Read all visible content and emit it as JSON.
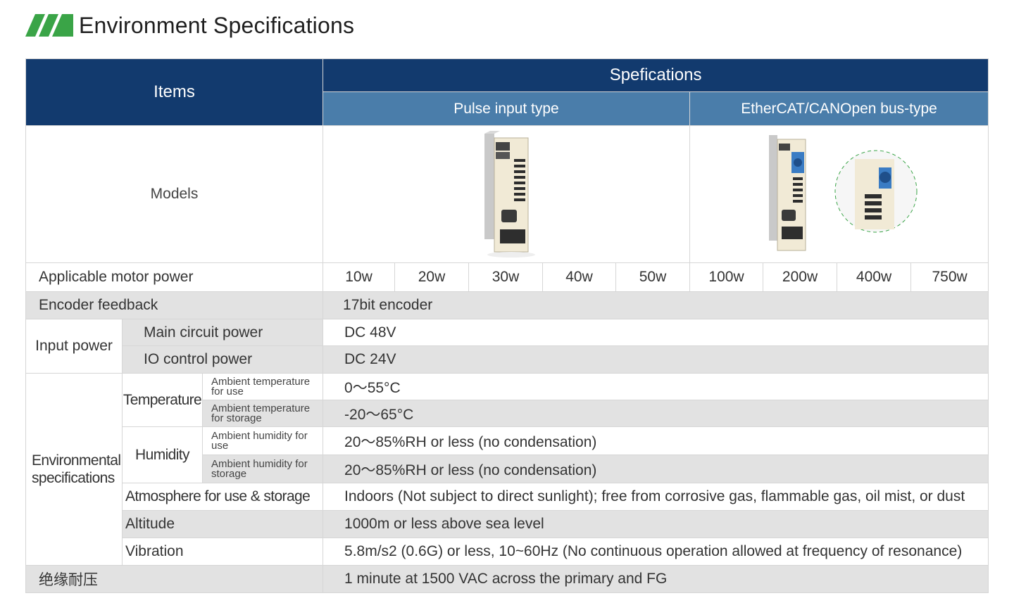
{
  "page_title": "Environment Specifications",
  "colors": {
    "header_dark": "#123a6e",
    "header_light": "#4a7daa",
    "logo_green": "#3aa447",
    "row_grey": "#e2e2e2"
  },
  "table": {
    "items_header": "Items",
    "spec_header": "Spefications",
    "sub_headers": [
      "Pulse input type",
      "EtherCAT/CANOpen bus-type"
    ],
    "models_label": "Models",
    "motor_power_label": "Applicable motor power",
    "motor_powers": [
      "10w",
      "20w",
      "30w",
      "40w",
      "50w",
      "100w",
      "200w",
      "400w",
      "750w"
    ],
    "encoder_label": "Encoder feedback",
    "encoder_value": "17bit encoder",
    "input_power_label": "Input power",
    "main_circuit_label": "Main circuit power",
    "main_circuit_value": "DC 48V",
    "io_control_label": "IO control power",
    "io_control_value": "DC 24V",
    "env_label": "Environmental specifications",
    "temperature_label": "Temperature",
    "temp_use_label": "Ambient temperature for use",
    "temp_use_value": "0～55°C",
    "temp_storage_label": "Ambient temperature for storage",
    "temp_storage_value": "-20～65°C",
    "humidity_label": "Humidity",
    "hum_use_label": "Ambient humidity for use",
    "hum_use_value": "20～85%RH or less (no condensation)",
    "hum_storage_label": "Ambient humidity for storage",
    "hum_storage_value": "20～85%RH or less (no condensation)",
    "atmosphere_label": "Atmosphere for use & storage",
    "atmosphere_value": "Indoors (Not subject to direct sunlight); free from corrosive gas,  flammable gas, oil mist, or dust",
    "altitude_label": "Altitude",
    "altitude_value": "1000m or less above sea level",
    "vibration_label": "Vibration",
    "vibration_value": "5.8m/s2 (0.6G) or less, 10~60Hz (No continuous operation allowed at frequency of resonance)",
    "insulation_label": "绝缘耐压",
    "insulation_value": "1 minute at 1500 VAC across the primary and FG"
  }
}
